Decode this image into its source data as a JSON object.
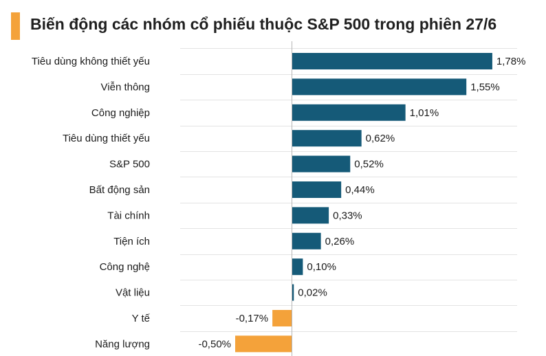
{
  "chart_data": {
    "type": "bar",
    "orientation": "horizontal",
    "title": "Biến động các nhóm cổ phiếu thuộc S&P 500 trong phiên 27/6",
    "categories": [
      "Tiêu dùng không thiết yếu",
      "Viễn thông",
      "Công nghiệp",
      "Tiêu dùng thiết yếu",
      "S&P 500",
      "Bất động sản",
      "Tài chính",
      "Tiện ích",
      "Công nghệ",
      "Vật liệu",
      "Y tế",
      "Năng lượng"
    ],
    "values": [
      1.78,
      1.55,
      1.01,
      0.62,
      0.52,
      0.44,
      0.33,
      0.26,
      0.1,
      0.02,
      -0.17,
      -0.5
    ],
    "value_labels": [
      "1,78%",
      "1,55%",
      "1,01%",
      "0,62%",
      "0,52%",
      "0,44%",
      "0,33%",
      "0,26%",
      "0,10%",
      "0,02%",
      "-0,17%",
      "-0,50%"
    ],
    "unit": "%",
    "grid": "horizontal",
    "legend": "none"
  },
  "colors": {
    "positive": "#155a78",
    "negative": "#f4a23a",
    "accent": "#f4a23a",
    "grid": "#e3e3e3",
    "axis": "#b5b5b5"
  }
}
